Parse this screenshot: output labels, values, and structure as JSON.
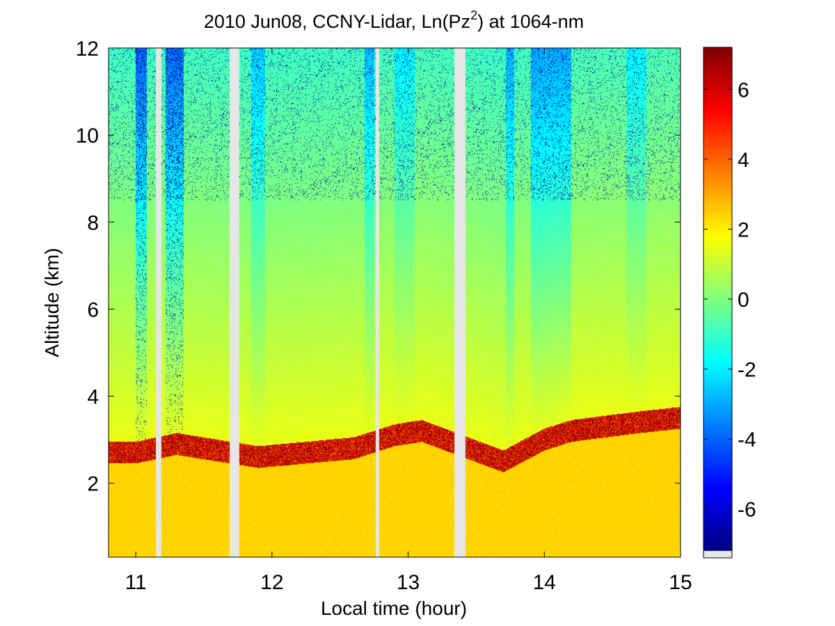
{
  "chart_data": {
    "type": "heatmap",
    "title": {
      "prefix": "2010 Jun08, CCNY-Lidar, Ln(Pz",
      "superscript": "2",
      "suffix": ") at 1064-nm"
    },
    "xlabel": "Local time (hour)",
    "ylabel": "Altitude (km)",
    "xlim": [
      10.8,
      15.0
    ],
    "ylim": [
      0.3,
      12.0
    ],
    "xticks": [
      11,
      12,
      13,
      14,
      15
    ],
    "xtick_labels": [
      "11",
      "12",
      "13",
      "14",
      "15"
    ],
    "yticks": [
      2,
      4,
      6,
      8,
      10,
      12
    ],
    "ytick_labels": [
      "2",
      "4",
      "6",
      "8",
      "10",
      "12"
    ],
    "colorbar": {
      "colormap": "jet",
      "range": [
        -7.2,
        7.2
      ],
      "ticks": [
        6,
        4,
        2,
        0,
        -2,
        -4,
        -6
      ],
      "tick_labels": [
        "6",
        "4",
        "2",
        "0",
        "-2",
        "-4",
        "-6"
      ],
      "nodata_color": "#e6e6e6"
    },
    "data_gaps_hours": [
      [
        11.15,
        11.19
      ],
      [
        11.69,
        11.76
      ],
      [
        12.76,
        12.79
      ],
      [
        13.34,
        13.42
      ]
    ],
    "boundary_layer": [
      {
        "time": 11.0,
        "top_km": 2.6
      },
      {
        "time": 11.3,
        "top_km": 2.8
      },
      {
        "time": 11.9,
        "top_km": 2.5
      },
      {
        "time": 12.6,
        "top_km": 2.7
      },
      {
        "time": 12.9,
        "top_km": 3.0
      },
      {
        "time": 13.1,
        "top_km": 3.1
      },
      {
        "time": 13.7,
        "top_km": 2.4
      },
      {
        "time": 14.0,
        "top_km": 2.9
      },
      {
        "time": 14.2,
        "top_km": 3.1
      },
      {
        "time": 14.7,
        "top_km": 3.3
      },
      {
        "time": 15.0,
        "top_km": 3.4
      }
    ],
    "grid": false
  }
}
